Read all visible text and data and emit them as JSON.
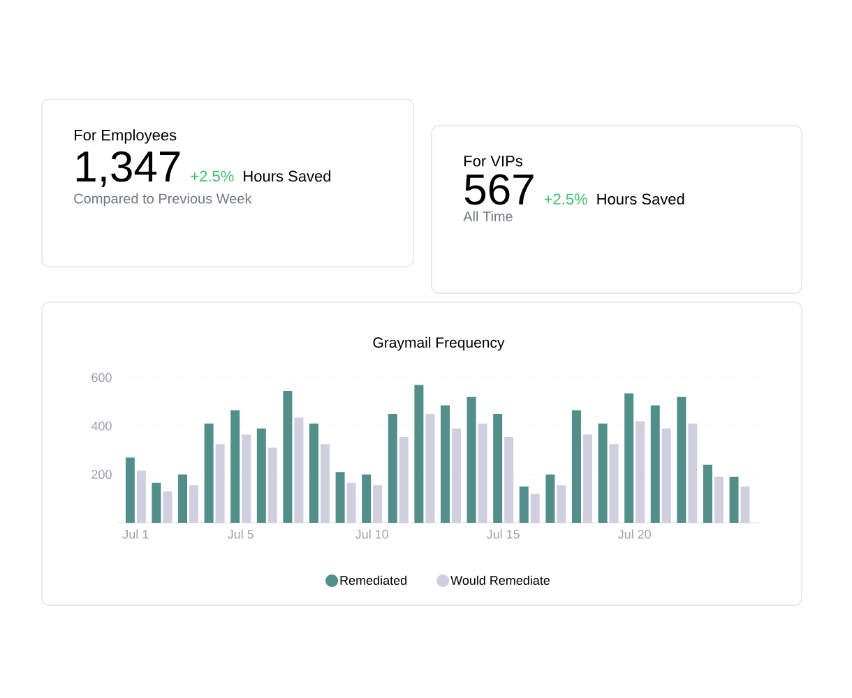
{
  "chart_data": [
    {
      "type": "other",
      "title": "For Employees",
      "annotations": [
        "1,347",
        "+2.5%",
        "Hours Saved",
        "Compared to Previous Week"
      ]
    },
    {
      "type": "other",
      "title": "For VIPs",
      "annotations": [
        "567",
        "+2.5%",
        "Hours Saved",
        "All Time"
      ]
    },
    {
      "type": "bar",
      "title": "Graymail Frequency",
      "categories": [
        "Jul 1",
        null,
        null,
        null,
        "Jul 5",
        null,
        null,
        null,
        null,
        "Jul 10",
        null,
        null,
        null,
        null,
        "Jul 15",
        null,
        null,
        null,
        null,
        "Jul 20",
        null,
        null,
        null,
        null
      ],
      "series": [
        {
          "name": "Remediated",
          "color": "#528e8a",
          "values": [
            270,
            165,
            200,
            410,
            465,
            390,
            545,
            410,
            210,
            200,
            450,
            570,
            485,
            520,
            450,
            150,
            200,
            465,
            410,
            535,
            485,
            520,
            240,
            190
          ]
        },
        {
          "name": "Would Remediate",
          "color": "#d0cfdf",
          "values": [
            215,
            130,
            155,
            325,
            365,
            310,
            435,
            325,
            165,
            155,
            355,
            450,
            390,
            410,
            355,
            120,
            155,
            365,
            325,
            420,
            390,
            410,
            190,
            150
          ]
        }
      ],
      "ylim": [
        0,
        600
      ],
      "yticks": [
        200,
        400,
        600
      ],
      "grid": "y",
      "legend": "bottom"
    }
  ]
}
